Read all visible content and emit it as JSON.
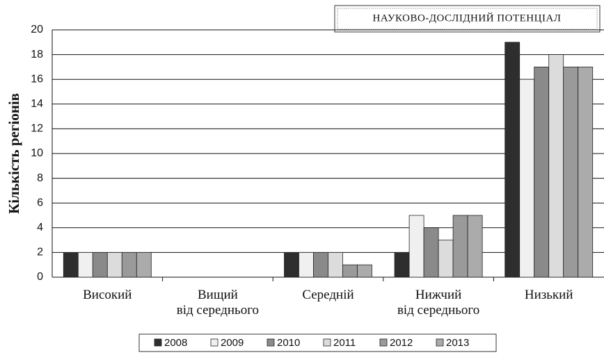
{
  "chart_data": {
    "type": "bar",
    "title": "НАУКОВО-ДОСЛІДНИЙ ПОТЕНЦІАЛ",
    "y_label": "Кількість регіонів",
    "categories": [
      "Високий",
      "Вищий\nвід середнього",
      "Середній",
      "Нижчий\nвід середнього",
      "Низький"
    ],
    "series": [
      {
        "name": "2008",
        "color": "#2e2e2e",
        "values": [
          2,
          0,
          2,
          2,
          19
        ]
      },
      {
        "name": "2009",
        "color": "#f0f0f0",
        "values": [
          2,
          0,
          2,
          5,
          16
        ]
      },
      {
        "name": "2010",
        "color": "#8a8a8a",
        "values": [
          2,
          0,
          2,
          4,
          17
        ]
      },
      {
        "name": "2011",
        "color": "#dcdcdc",
        "values": [
          2,
          0,
          2,
          3,
          18
        ]
      },
      {
        "name": "2012",
        "color": "#9a9a9a",
        "values": [
          2,
          0,
          1,
          5,
          17
        ]
      },
      {
        "name": "2013",
        "color": "#ababab",
        "values": [
          2,
          0,
          1,
          5,
          17
        ]
      }
    ],
    "ylim": [
      0,
      20
    ],
    "yticks": [
      0,
      2,
      4,
      6,
      8,
      10,
      12,
      14,
      16,
      18,
      20
    ],
    "grid": true
  }
}
